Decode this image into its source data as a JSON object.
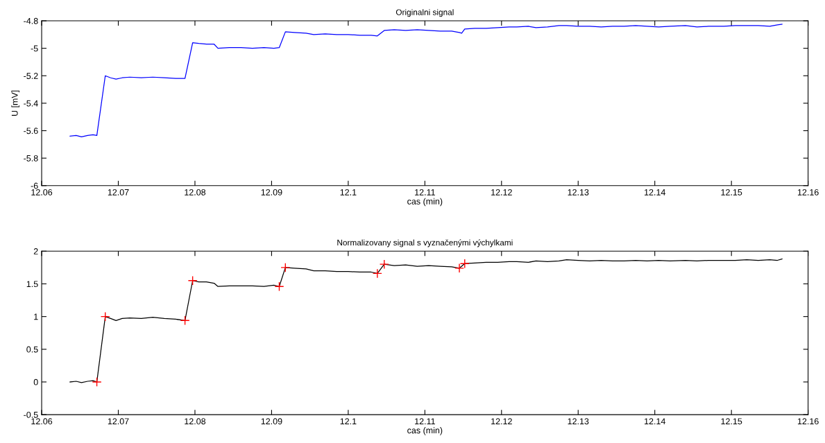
{
  "chart_data": [
    {
      "type": "line",
      "title": "Originalni signal",
      "xlabel": "cas (min)",
      "ylabel": "U [mV]",
      "xlim": [
        12.06,
        12.16
      ],
      "xticks": [
        12.06,
        12.07,
        12.08,
        12.09,
        12.1,
        12.11,
        12.12,
        12.13,
        12.14,
        12.15,
        12.16
      ],
      "ylim": [
        -6,
        -4.8
      ],
      "yticks": [
        -6,
        -5.8,
        -5.6,
        -5.4,
        -5.2,
        -5,
        -4.8
      ],
      "grid": false,
      "legend": false,
      "marker": "none",
      "line_style": "solid",
      "x": [
        12.0637,
        12.0645,
        12.0652,
        12.066,
        12.0667,
        12.0672,
        12.0683,
        12.069,
        12.0697,
        12.0705,
        12.0715,
        12.073,
        12.0745,
        12.076,
        12.0775,
        12.0787,
        12.0797,
        12.0805,
        12.0815,
        12.0825,
        12.083,
        12.0845,
        12.086,
        12.0875,
        12.089,
        12.0903,
        12.091,
        12.0918,
        12.093,
        12.0945,
        12.0955,
        12.097,
        12.0985,
        12.1,
        12.1015,
        12.103,
        12.1038,
        12.1047,
        12.106,
        12.1075,
        12.109,
        12.1105,
        12.112,
        12.1135,
        12.1145,
        12.1148,
        12.1152,
        12.1165,
        12.118,
        12.1195,
        12.121,
        12.122,
        12.1235,
        12.1245,
        12.126,
        12.1275,
        12.1285,
        12.13,
        12.1315,
        12.133,
        12.1345,
        12.136,
        12.1375,
        12.139,
        12.1405,
        12.142,
        12.144,
        12.1455,
        12.147,
        12.149,
        12.1505,
        12.152,
        12.1535,
        12.155,
        12.156,
        12.1566
      ],
      "series": [
        {
          "color": "#0000ff",
          "values": [
            -5.64,
            -5.635,
            -5.645,
            -5.635,
            -5.63,
            -5.635,
            -5.2,
            -5.215,
            -5.225,
            -5.215,
            -5.21,
            -5.215,
            -5.21,
            -5.215,
            -5.22,
            -5.22,
            -4.96,
            -4.965,
            -4.97,
            -4.97,
            -5.0,
            -4.995,
            -4.995,
            -5.0,
            -4.995,
            -5.0,
            -4.995,
            -4.88,
            -4.885,
            -4.89,
            -4.9,
            -4.895,
            -4.9,
            -4.9,
            -4.905,
            -4.905,
            -4.91,
            -4.87,
            -4.865,
            -4.87,
            -4.865,
            -4.87,
            -4.875,
            -4.875,
            -4.885,
            -4.89,
            -4.86,
            -4.855,
            -4.855,
            -4.85,
            -4.845,
            -4.845,
            -4.84,
            -4.85,
            -4.845,
            -4.835,
            -4.835,
            -4.84,
            -4.84,
            -4.845,
            -4.84,
            -4.84,
            -4.835,
            -4.84,
            -4.845,
            -4.84,
            -4.835,
            -4.845,
            -4.84,
            -4.84,
            -4.835,
            -4.835,
            -4.835,
            -4.84,
            -4.83,
            -4.825
          ]
        }
      ]
    },
    {
      "type": "line",
      "title": "Normalizovany signal s vyznačenými výchylkami",
      "xlabel": "cas (min)",
      "xlim": [
        12.06,
        12.16
      ],
      "xticks": [
        12.06,
        12.07,
        12.08,
        12.09,
        12.1,
        12.11,
        12.12,
        12.13,
        12.14,
        12.15,
        12.16
      ],
      "ylim": [
        -0.5,
        2
      ],
      "yticks": [
        -0.5,
        0,
        0.5,
        1,
        1.5,
        2
      ],
      "grid": false,
      "legend": false,
      "line_style": "solid",
      "x": [
        12.0637,
        12.0645,
        12.0652,
        12.066,
        12.0667,
        12.0672,
        12.0683,
        12.069,
        12.0697,
        12.0705,
        12.0715,
        12.073,
        12.0745,
        12.076,
        12.0775,
        12.0787,
        12.0797,
        12.0805,
        12.0815,
        12.0825,
        12.083,
        12.0845,
        12.086,
        12.0875,
        12.089,
        12.0903,
        12.091,
        12.0918,
        12.093,
        12.0945,
        12.0955,
        12.097,
        12.0985,
        12.1,
        12.1015,
        12.103,
        12.1038,
        12.1047,
        12.106,
        12.1075,
        12.109,
        12.1105,
        12.112,
        12.1135,
        12.1145,
        12.1152,
        12.1165,
        12.118,
        12.1195,
        12.121,
        12.122,
        12.1235,
        12.1245,
        12.126,
        12.1275,
        12.1285,
        12.13,
        12.1315,
        12.133,
        12.1345,
        12.136,
        12.1375,
        12.139,
        12.1405,
        12.142,
        12.144,
        12.1455,
        12.147,
        12.149,
        12.1505,
        12.152,
        12.1535,
        12.155,
        12.156,
        12.1566
      ],
      "series": [
        {
          "type": "line",
          "color": "#000000",
          "marker": "none",
          "values": [
            0,
            0.01,
            -0.01,
            0.01,
            0.02,
            0,
            1.0,
            0.97,
            0.94,
            0.97,
            0.98,
            0.97,
            0.99,
            0.97,
            0.96,
            0.94,
            1.55,
            1.53,
            1.53,
            1.51,
            1.46,
            1.47,
            1.47,
            1.47,
            1.46,
            1.48,
            1.46,
            1.75,
            1.74,
            1.73,
            1.7,
            1.7,
            1.69,
            1.69,
            1.68,
            1.68,
            1.66,
            1.8,
            1.78,
            1.79,
            1.77,
            1.78,
            1.77,
            1.76,
            1.74,
            1.81,
            1.82,
            1.83,
            1.83,
            1.84,
            1.84,
            1.83,
            1.85,
            1.84,
            1.85,
            1.87,
            1.86,
            1.85,
            1.86,
            1.85,
            1.85,
            1.86,
            1.85,
            1.86,
            1.85,
            1.86,
            1.85,
            1.86,
            1.86,
            1.86,
            1.87,
            1.86,
            1.87,
            1.86,
            1.88
          ]
        },
        {
          "type": "scatter",
          "color": "#ff0000",
          "marker": "cross",
          "x": [
            12.0672,
            12.0683,
            12.0787,
            12.0797,
            12.091,
            12.0918,
            12.1038,
            12.1047,
            12.1145,
            12.1152
          ],
          "values": [
            0,
            1.0,
            0.94,
            1.55,
            1.46,
            1.75,
            1.66,
            1.8,
            1.74,
            1.81
          ]
        }
      ]
    }
  ]
}
